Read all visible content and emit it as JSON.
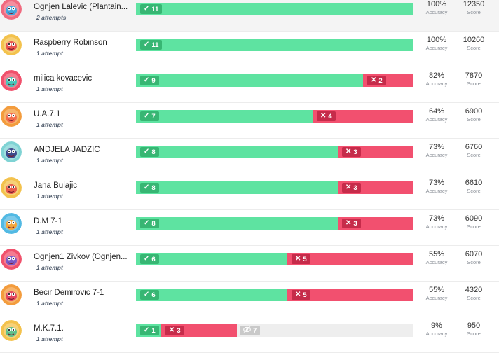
{
  "labels": {
    "accuracy": "Accuracy",
    "score": "Score"
  },
  "colors": {
    "correct": "#5ee3a1",
    "incorrect": "#f2506f",
    "unattempted": "#eeeeee"
  },
  "icons": {
    "correct": "check-icon",
    "incorrect": "cross-icon",
    "unattempted": "eye-slash-icon"
  },
  "rows": [
    {
      "name": "Ognjen Lalevic (Plantain...",
      "attempts": "2 attempts",
      "correct": "11",
      "incorrect": "",
      "unattempted": "",
      "accuracy": "100%",
      "score": "12350",
      "avatar": "monster-avatar-1"
    },
    {
      "name": "Raspberry Robinson",
      "attempts": "1 attempt",
      "correct": "11",
      "incorrect": "",
      "unattempted": "",
      "accuracy": "100%",
      "score": "10260",
      "avatar": "monster-avatar-2"
    },
    {
      "name": "milica kovacevic",
      "attempts": "1 attempt",
      "correct": "9",
      "incorrect": "2",
      "unattempted": "",
      "accuracy": "82%",
      "score": "7870",
      "avatar": "monster-avatar-3"
    },
    {
      "name": "U.A.7.1",
      "attempts": "1 attempt",
      "correct": "7",
      "incorrect": "4",
      "unattempted": "",
      "accuracy": "64%",
      "score": "6900",
      "avatar": "monster-avatar-4"
    },
    {
      "name": "ANDJELA JADZIC",
      "attempts": "1 attempt",
      "correct": "8",
      "incorrect": "3",
      "unattempted": "",
      "accuracy": "73%",
      "score": "6760",
      "avatar": "monster-avatar-5"
    },
    {
      "name": "Jana Bulajic",
      "attempts": "1 attempt",
      "correct": "8",
      "incorrect": "3",
      "unattempted": "",
      "accuracy": "73%",
      "score": "6610",
      "avatar": "monster-avatar-6"
    },
    {
      "name": "D.M 7-1",
      "attempts": "1 attempt",
      "correct": "8",
      "incorrect": "3",
      "unattempted": "",
      "accuracy": "73%",
      "score": "6090",
      "avatar": "monster-avatar-7"
    },
    {
      "name": "Ognjen1 Zivkov (Ognjen...",
      "attempts": "1 attempt",
      "correct": "6",
      "incorrect": "5",
      "unattempted": "",
      "accuracy": "55%",
      "score": "6070",
      "avatar": "monster-avatar-8"
    },
    {
      "name": "Becir Demirovic 7-1",
      "attempts": "1 attempt",
      "correct": "6",
      "incorrect": "5",
      "unattempted": "",
      "accuracy": "55%",
      "score": "4320",
      "avatar": "monster-avatar-9"
    },
    {
      "name": "M.K.7.1.",
      "attempts": "1 attempt",
      "correct": "1",
      "incorrect": "3",
      "unattempted": "7",
      "accuracy": "9%",
      "score": "950",
      "avatar": "monster-avatar-10"
    }
  ]
}
